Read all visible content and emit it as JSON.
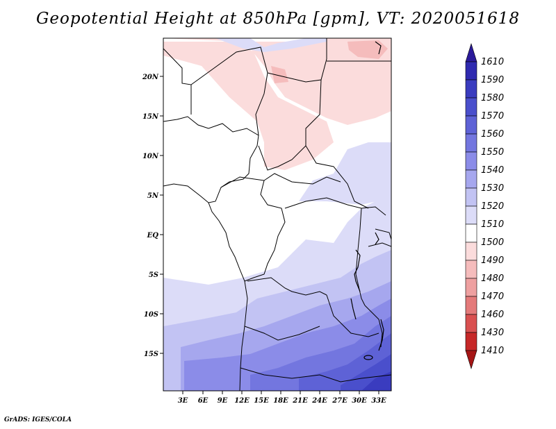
{
  "title": "Geopotential Height at 850hPa [gpm], VT: 2020051618",
  "credit": "GrADS: IGES/COLA",
  "map": {
    "lat_labels": [
      "20N",
      "15N",
      "10N",
      "5N",
      "EQ",
      "5S",
      "10S",
      "15S"
    ],
    "lon_labels": [
      "3E",
      "6E",
      "9E",
      "12E",
      "15E",
      "18E",
      "21E",
      "24E",
      "27E",
      "30E",
      "33E"
    ]
  },
  "colorbar": {
    "levels": [
      "1610",
      "1590",
      "1580",
      "1570",
      "1560",
      "1550",
      "1540",
      "1530",
      "1520",
      "1510",
      "1500",
      "1490",
      "1480",
      "1470",
      "1460",
      "1430",
      "1410"
    ],
    "colors": [
      "#2b1a9a",
      "#2f2ab0",
      "#3a3cbf",
      "#4a4fcc",
      "#5e62d6",
      "#7376df",
      "#8b8ce8",
      "#a6a7ee",
      "#c2c3f3",
      "#dcdcf8",
      "#ffffff",
      "#fbdcdc",
      "#f5bcbc",
      "#eea0a0",
      "#e47a7a",
      "#d95050",
      "#c62828",
      "#a51515"
    ]
  }
}
